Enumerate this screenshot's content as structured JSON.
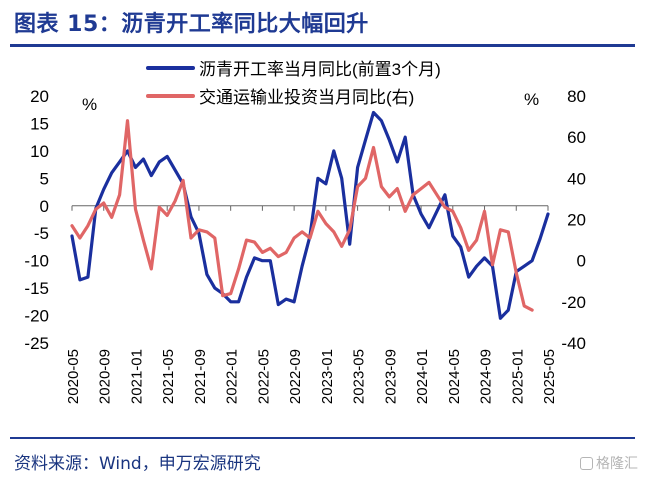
{
  "title": "图表 15：沥青开工率同比大幅回升",
  "source": "资料来源：Wind，申万宏源研究",
  "watermark": "格隆汇",
  "colors": {
    "series1": "#1a2f9e",
    "series2": "#e06666",
    "title": "#1f3a93",
    "axis": "#666666"
  },
  "chart_data": {
    "type": "line",
    "left_axis": {
      "unit": "%",
      "ylim": [
        -25,
        20
      ],
      "ticks": [
        20,
        15,
        10,
        5,
        0,
        -5,
        -10,
        -15,
        -20,
        -25
      ]
    },
    "right_axis": {
      "unit": "%",
      "ylim": [
        -40,
        80
      ],
      "ticks": [
        80,
        60,
        40,
        20,
        0,
        -20,
        -40
      ]
    },
    "x_start": "2020-05",
    "x_end": "2025-05",
    "x_tick_labels": [
      "2020-05",
      "2020-09",
      "2021-01",
      "2021-05",
      "2021-09",
      "2022-01",
      "2022-05",
      "2022-09",
      "2023-01",
      "2023-05",
      "2023-09",
      "2024-01",
      "2024-05",
      "2024-09",
      "2025-01",
      "2025-05"
    ],
    "grid": false,
    "legend_position": "top-center",
    "series": [
      {
        "name": "沥青开工率当月同比(前置3个月)",
        "axis": "left",
        "color": "#1a2f9e",
        "values": [
          -5.5,
          -13.5,
          -13,
          -0.5,
          3,
          6,
          8,
          10,
          7,
          8.5,
          5.5,
          8,
          9,
          6.5,
          4,
          -2,
          -5,
          -12.5,
          -15,
          -16,
          -17.5,
          -17.5,
          -13,
          -9.5,
          -10,
          -10,
          -18,
          -17,
          -17.5,
          -11,
          -5.5,
          5,
          4,
          10,
          5,
          -7,
          7,
          12,
          17,
          15.5,
          12,
          8,
          12.5,
          2,
          -1.5,
          -4,
          -1,
          2,
          -5.5,
          -7.5,
          -13,
          -11,
          -9.5,
          -11,
          -20.5,
          -19,
          -12,
          -11,
          -10,
          -6,
          -1.5
        ]
      },
      {
        "name": "交通运输业投资当月同比(右)",
        "axis": "right",
        "color": "#e06666",
        "values": [
          17,
          11,
          17,
          25,
          28,
          21,
          32,
          68,
          25,
          10,
          -4,
          26,
          22,
          29,
          39,
          11,
          15,
          14,
          11,
          -17,
          -16,
          -4,
          10,
          9,
          4,
          6,
          2,
          4,
          11,
          14,
          11,
          24,
          18,
          14,
          7,
          15,
          36,
          40,
          55,
          36,
          31,
          35,
          24,
          32,
          35,
          38,
          32,
          26,
          24,
          16,
          5,
          10,
          24,
          -2,
          15,
          14,
          -6,
          -22,
          -24,
          null,
          null
        ]
      }
    ]
  }
}
